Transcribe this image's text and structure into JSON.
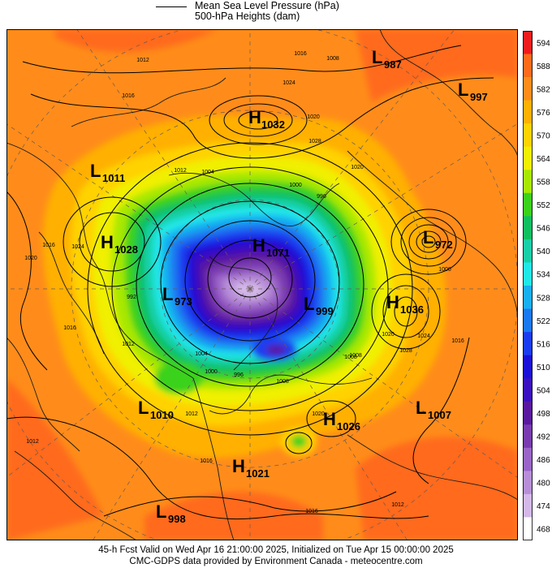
{
  "legend": {
    "line1": "Mean Sea Level Pressure (hPa)",
    "line2": "500-hPa Heights (dam)"
  },
  "footer": {
    "line1": "45-h Fcst Valid on Wed Apr 16 21:00:00 2025, Initialized on Tue Apr 15 00:00:00 2025",
    "line2": "CMC-GDPS data provided by Environment Canada - meteocentre.com"
  },
  "colorbar": {
    "labels": [
      "594",
      "588",
      "582",
      "576",
      "570",
      "564",
      "558",
      "552",
      "546",
      "540",
      "534",
      "528",
      "522",
      "516",
      "510",
      "504",
      "498",
      "492",
      "486",
      "480",
      "474",
      "468"
    ],
    "colors": [
      "#ee1c1c",
      "#ff6a1a",
      "#ff8c1a",
      "#ffb000",
      "#ffd200",
      "#f0f000",
      "#a8e800",
      "#3ad21a",
      "#10c060",
      "#18d0a8",
      "#20e8e8",
      "#18b0f0",
      "#1a78f0",
      "#1a3cf0",
      "#1a10d8",
      "#3a10c0",
      "#5a18a0",
      "#7a3ab0",
      "#9a64c8",
      "#b88ed8",
      "#d4b8e8",
      "#ffffff"
    ]
  },
  "centers": [
    {
      "type": "L",
      "value": "987"
    },
    {
      "type": "L",
      "value": "997"
    },
    {
      "type": "H",
      "value": "1032"
    },
    {
      "type": "L",
      "value": "1011"
    },
    {
      "type": "H",
      "value": "1028"
    },
    {
      "type": "H",
      "value": "1071"
    },
    {
      "type": "L",
      "value": "972"
    },
    {
      "type": "L",
      "value": "973"
    },
    {
      "type": "L",
      "value": "999"
    },
    {
      "type": "H",
      "value": "1036"
    },
    {
      "type": "L",
      "value": "1010"
    },
    {
      "type": "H",
      "value": "1026"
    },
    {
      "type": "L",
      "value": "1007"
    },
    {
      "type": "H",
      "value": "1021"
    },
    {
      "type": "L",
      "value": "998"
    }
  ],
  "isobar_labels": [
    "1012",
    "1016",
    "1016",
    "1008",
    "1020",
    "1024",
    "1028",
    "1012",
    "1004",
    "1000",
    "996",
    "1020",
    "1016",
    "1024",
    "1020",
    "1016",
    "1012",
    "1004",
    "1000",
    "996",
    "992",
    "1008",
    "1020",
    "1016",
    "1012",
    "1012",
    "1016",
    "1012",
    "1008",
    "1000",
    "1028",
    "1024",
    "1020",
    "1016",
    "1008"
  ]
}
